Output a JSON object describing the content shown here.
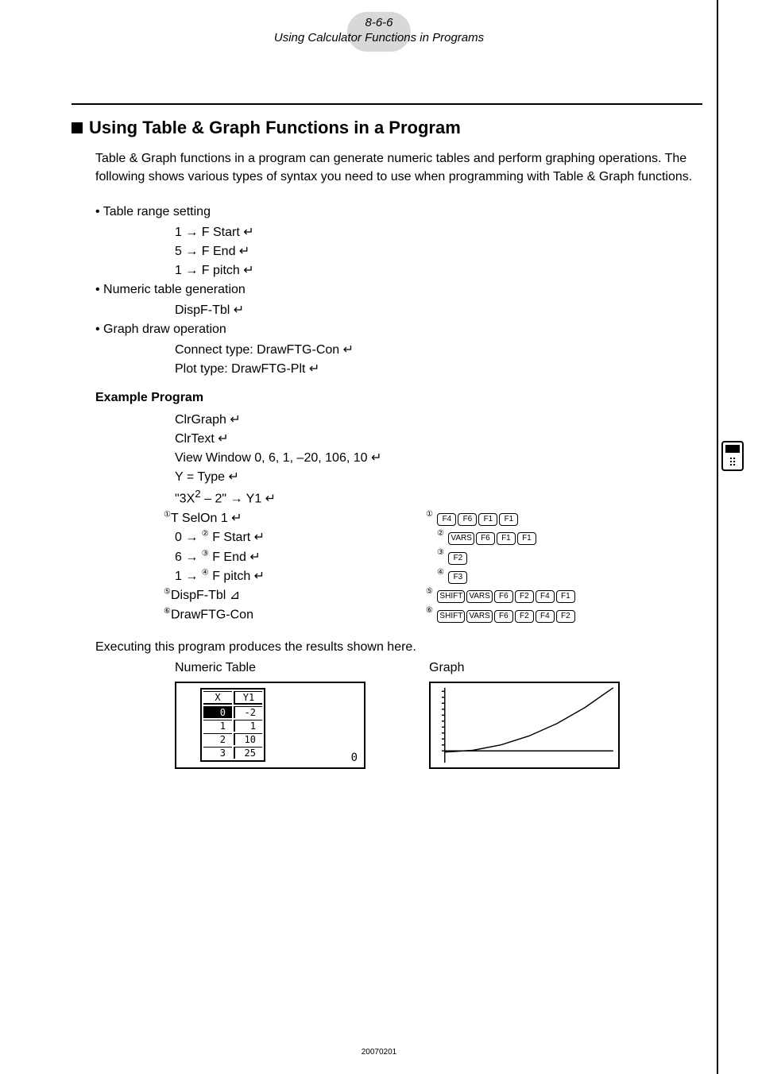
{
  "header": {
    "page_num": "8-6-6",
    "page_title": "Using Calculator Functions in Programs"
  },
  "section": {
    "title": "Using Table & Graph Functions in a Program",
    "intro": "Table & Graph functions in a program can generate numeric tables and perform graphing operations. The following shows various types of syntax you need to use when programming with Table & Graph functions."
  },
  "bullets": {
    "b1": "• Table range setting",
    "b1_lines": {
      "l1": "1 → F  Start ↵",
      "l2": "5 → F  End ↵",
      "l3": "1 → F  pitch ↵"
    },
    "b2": "• Numeric table generation",
    "b2_lines": {
      "l1": "DispF-Tbl ↵"
    },
    "b3": "• Graph draw operation",
    "b3_lines": {
      "l1": "Connect type: DrawFTG-Con ↵",
      "l2": "Plot type: DrawFTG-Plt ↵"
    }
  },
  "example": {
    "heading": "Example Program",
    "lines": {
      "l1": "ClrGraph ↵",
      "l2": "ClrText ↵",
      "l3": "View Window 0, 6, 1, –20, 106, 10 ↵",
      "l4": "Y = Type ↵",
      "l5_pre": "\"3X",
      "l5_sup": "2",
      "l5_post": " – 2\" → Y1 ↵",
      "l6_mark": "①",
      "l6": "T SelOn 1 ↵",
      "l7_pre": "0 → ",
      "l7_mark": "②",
      "l7_post": " F  Start ↵",
      "l8_pre": "6 → ",
      "l8_mark": "③",
      "l8_post": " F  End ↵",
      "l9_pre": "1 → ",
      "l9_mark": "④",
      "l9_post": " F  pitch ↵",
      "l10_mark": "⑤",
      "l10": "DispF-Tbl ⊿",
      "l11_mark": "⑥",
      "l11": "DrawFTG-Con"
    },
    "keys": {
      "k1_mark": "①",
      "k1": [
        "F4",
        "F6",
        "F1",
        "F1"
      ],
      "k2_mark": "②",
      "k2": [
        "VARS",
        "F6",
        "F1",
        "F1"
      ],
      "k3_mark": "③",
      "k3": [
        "F2"
      ],
      "k4_mark": "④",
      "k4": [
        "F3"
      ],
      "k5_mark": "⑤",
      "k5": [
        "SHIFT",
        "VARS",
        "F6",
        "F2",
        "F4",
        "F1"
      ],
      "k6_mark": "⑥",
      "k6": [
        "SHIFT",
        "VARS",
        "F6",
        "F2",
        "F4",
        "F2"
      ]
    }
  },
  "results": {
    "text": "Executing this program produces the results shown here.",
    "table_label": "Numeric Table",
    "graph_label": "Graph",
    "table": {
      "head": [
        "X",
        "Y1"
      ],
      "rows": [
        [
          "0",
          "-2"
        ],
        [
          "1",
          "1"
        ],
        [
          "2",
          "10"
        ],
        [
          "3",
          "25"
        ]
      ],
      "corner": "0"
    },
    "graph": {
      "type": "line",
      "background_color": "#ffffff",
      "axis_color": "#000000",
      "line_color": "#000000",
      "xlim": [
        0,
        6
      ],
      "ylim": [
        -20,
        106
      ],
      "y_ticks": [
        0,
        10,
        20,
        30,
        40,
        50,
        60,
        70,
        80,
        90,
        100
      ],
      "points": [
        [
          0,
          -2
        ],
        [
          1,
          1
        ],
        [
          2,
          10
        ],
        [
          3,
          25
        ],
        [
          4,
          46
        ],
        [
          5,
          73
        ],
        [
          6,
          106
        ]
      ]
    }
  },
  "footer": {
    "date": "20070201"
  }
}
